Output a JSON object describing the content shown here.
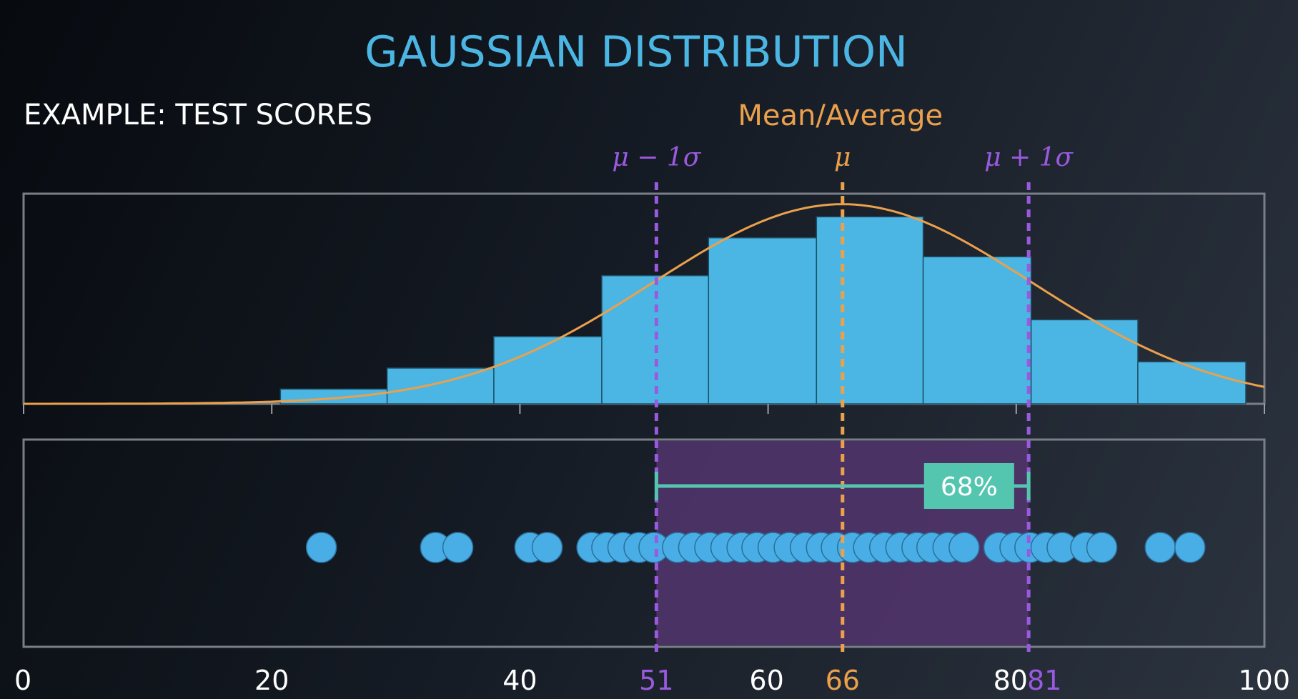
{
  "title": "GAUSSIAN DISTRIBUTION",
  "subtitle": "EXAMPLE: TEST SCORES",
  "chart_data": {
    "type": "bar",
    "xlim": [
      0,
      100
    ],
    "x_ticks": [
      0,
      20,
      40,
      60,
      80,
      100
    ],
    "histogram": {
      "bins": [
        {
          "start": 20.7,
          "end": 29.3,
          "value": 0.07
        },
        {
          "start": 29.3,
          "end": 37.9,
          "value": 0.17
        },
        {
          "start": 37.9,
          "end": 46.6,
          "value": 0.32
        },
        {
          "start": 46.6,
          "end": 55.2,
          "value": 0.61
        },
        {
          "start": 55.2,
          "end": 63.9,
          "value": 0.79
        },
        {
          "start": 63.9,
          "end": 72.5,
          "value": 0.89
        },
        {
          "start": 72.5,
          "end": 81.2,
          "value": 0.7
        },
        {
          "start": 81.2,
          "end": 89.8,
          "value": 0.4
        },
        {
          "start": 89.8,
          "end": 98.5,
          "value": 0.2
        }
      ],
      "ylim": [
        0,
        1.0
      ]
    },
    "curve": {
      "mean": 66,
      "sd": 15.3,
      "peak": 0.95
    },
    "mean_label": "Mean/Average",
    "markers": [
      {
        "label_latex": "μ − 1σ",
        "x": 51,
        "tick_label": "51",
        "color": "#9a5ae0"
      },
      {
        "label_latex": "μ",
        "x": 66,
        "tick_label": "66",
        "color": "#eba04c"
      },
      {
        "label_latex": "μ + 1σ",
        "x": 81,
        "tick_label": "81",
        "color": "#9a5ae0"
      }
    ],
    "shaded_range": {
      "start": 51,
      "end": 81,
      "color": "#54356e"
    },
    "range_label": "68%",
    "points": [
      24,
      33.2,
      35,
      40.8,
      42.2,
      45.8,
      47,
      48.3,
      49.6,
      50.8,
      52.7,
      54,
      55.3,
      56.6,
      57.9,
      59.1,
      60.4,
      61.7,
      63,
      64.3,
      65.5,
      66.8,
      68.1,
      69.4,
      70.7,
      72,
      73.2,
      74.5,
      75.8,
      78.6,
      79.9,
      81.1,
      82.4,
      83.7,
      85.6,
      86.9,
      91.6,
      94
    ]
  },
  "colors": {
    "bar": "#4bb6e3",
    "curve": "#eba04c",
    "sigma": "#9a5ae0",
    "mean": "#eba04c",
    "range": "#54c6b0",
    "point": "#4aaee6",
    "frame": "#7a7f87",
    "tick_text": "#ffffff"
  }
}
